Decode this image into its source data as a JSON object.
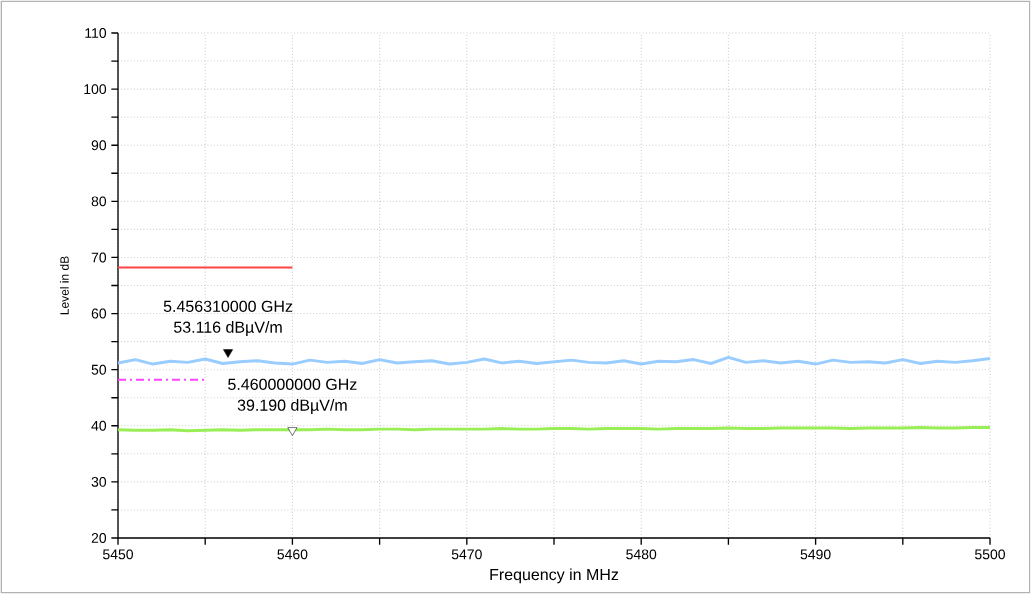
{
  "chart_data": {
    "type": "line",
    "xlabel": "Frequency in MHz",
    "ylabel": "Level in dB",
    "x": [
      5450,
      5451,
      5452,
      5453,
      5454,
      5455,
      5456,
      5457,
      5458,
      5459,
      5460,
      5461,
      5462,
      5463,
      5464,
      5465,
      5466,
      5467,
      5468,
      5469,
      5470,
      5471,
      5472,
      5473,
      5474,
      5475,
      5476,
      5477,
      5478,
      5479,
      5480,
      5481,
      5482,
      5483,
      5484,
      5485,
      5486,
      5487,
      5488,
      5489,
      5490,
      5491,
      5492,
      5493,
      5494,
      5495,
      5496,
      5497,
      5498,
      5499,
      5500
    ],
    "series": [
      {
        "color": "#99ccff",
        "values": [
          51.2,
          51.8,
          51.0,
          51.5,
          51.3,
          51.9,
          51.1,
          51.4,
          51.6,
          51.2,
          51.0,
          51.7,
          51.3,
          51.5,
          51.1,
          51.8,
          51.2,
          51.4,
          51.6,
          51.0,
          51.3,
          51.9,
          51.2,
          51.5,
          51.1,
          51.4,
          51.7,
          51.3,
          51.2,
          51.6,
          51.0,
          51.5,
          51.4,
          51.8,
          51.1,
          52.2,
          51.3,
          51.6,
          51.2,
          51.5,
          51.0,
          51.7,
          51.3,
          51.4,
          51.2,
          51.8,
          51.1,
          51.5,
          51.3,
          51.6,
          52.0
        ]
      },
      {
        "color": "#99ee55",
        "values": [
          39.3,
          39.2,
          39.2,
          39.3,
          39.1,
          39.2,
          39.3,
          39.2,
          39.3,
          39.3,
          39.3,
          39.3,
          39.4,
          39.3,
          39.3,
          39.4,
          39.4,
          39.3,
          39.4,
          39.4,
          39.4,
          39.4,
          39.5,
          39.4,
          39.4,
          39.5,
          39.5,
          39.4,
          39.5,
          39.5,
          39.5,
          39.4,
          39.5,
          39.5,
          39.5,
          39.6,
          39.5,
          39.5,
          39.6,
          39.6,
          39.6,
          39.6,
          39.5,
          39.6,
          39.6,
          39.6,
          39.7,
          39.6,
          39.6,
          39.7,
          39.7
        ]
      },
      {
        "color": "#ff4444",
        "x": [
          5450,
          5460
        ],
        "values": [
          68.2,
          68.2
        ]
      },
      {
        "color": "#ff44ff",
        "x": [
          5450,
          5455
        ],
        "values": [
          48.2,
          48.2
        ],
        "line_style": "dashed"
      },
      {
        "type": "scatter",
        "marker": "triangle",
        "x": [
          5456.31,
          5460
        ],
        "values": [
          53.1,
          39.2
        ],
        "colors": [
          "#000000",
          "#ffffff"
        ]
      }
    ],
    "xlim": [
      5450,
      5500
    ],
    "ylim": [
      20,
      110
    ],
    "xticks": [
      5450,
      {
        "value": 5455,
        "label": null
      },
      5460,
      {
        "value": 5465,
        "label": null
      },
      5470,
      {
        "value": 5475,
        "label": null
      },
      5480,
      {
        "value": 5485,
        "label": null
      },
      5490,
      {
        "value": 5495,
        "label": null
      },
      5500
    ],
    "yticks": [
      20,
      {
        "value": 25,
        "label": null
      },
      30,
      {
        "value": 35,
        "label": null
      },
      40,
      {
        "value": 45,
        "label": null
      },
      50,
      {
        "value": 55,
        "label": null
      },
      60,
      {
        "value": 65,
        "label": null
      },
      70,
      {
        "value": 75,
        "label": null
      },
      80,
      {
        "value": 85,
        "label": null
      },
      90,
      {
        "value": 95,
        "label": null
      },
      100,
      {
        "value": 105,
        "label": null
      },
      110
    ],
    "grid": true,
    "annotations": [
      "5.456310000 GHz",
      "53.116 dBµV/m",
      "5.460000000 GHz",
      "39.190 dBµV/m"
    ]
  }
}
